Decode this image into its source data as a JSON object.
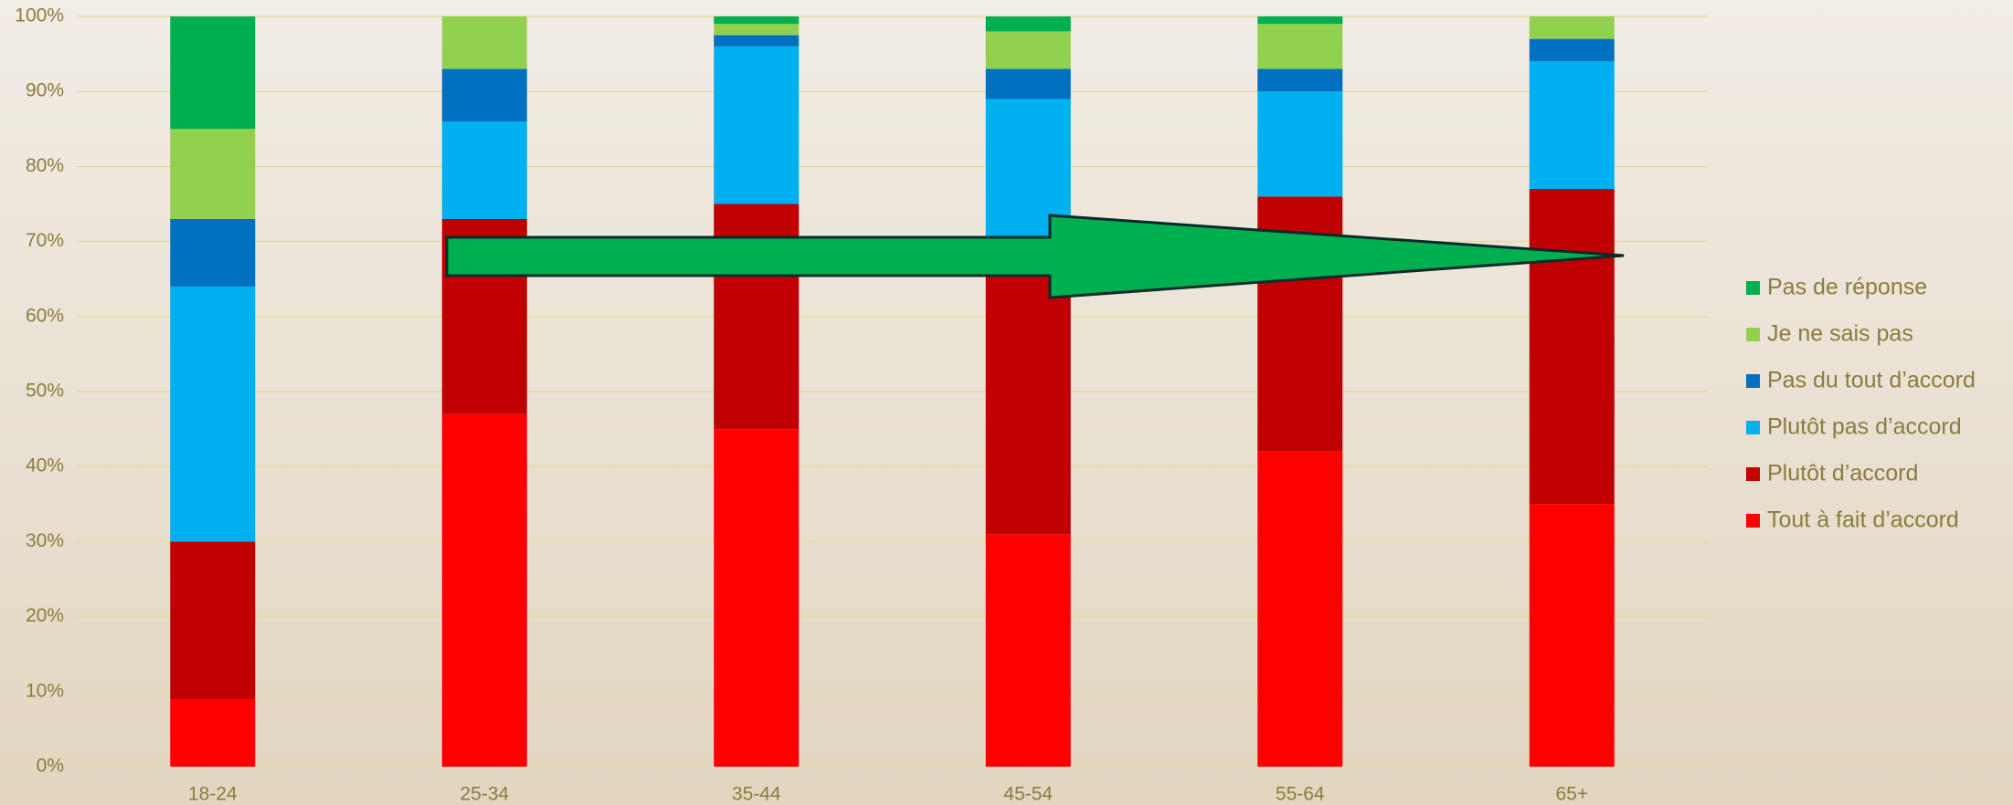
{
  "chart_data": {
    "type": "stacked_bar",
    "categories": [
      "18-24",
      "25-34",
      "35-44",
      "45-54",
      "55-64",
      "65+"
    ],
    "series": [
      {
        "name": "Tout à fait d’accord",
        "color": "#ff0000",
        "values": [
          9,
          47,
          45,
          31,
          42,
          35
        ]
      },
      {
        "name": "Plutôt d’accord",
        "color": "#c00000",
        "values": [
          21,
          26,
          30,
          39,
          34,
          42
        ]
      },
      {
        "name": "Plutôt pas d’accord",
        "color": "#00b0f0",
        "values": [
          34,
          13,
          21,
          19,
          14,
          17
        ]
      },
      {
        "name": "Pas du tout d’accord",
        "color": "#0070c0",
        "values": [
          9,
          7,
          1.5,
          4,
          3,
          3
        ]
      },
      {
        "name": "Je ne sais pas",
        "color": "#92d050",
        "values": [
          12,
          7,
          1.5,
          5,
          6,
          3
        ]
      },
      {
        "name": "Pas de réponse",
        "color": "#00b050",
        "values": [
          15,
          0,
          1,
          2,
          1,
          0
        ]
      }
    ],
    "ylim": [
      0,
      100
    ],
    "yticks": [
      {
        "value": 0,
        "label": "0%"
      },
      {
        "value": 10,
        "label": "10%"
      },
      {
        "value": 20,
        "label": "20%"
      },
      {
        "value": 30,
        "label": "30%"
      },
      {
        "value": 40,
        "label": "40%"
      },
      {
        "value": 50,
        "label": "50%"
      },
      {
        "value": 60,
        "label": "60%"
      },
      {
        "value": 70,
        "label": "70%"
      },
      {
        "value": 80,
        "label": "80%"
      },
      {
        "value": 90,
        "label": "90%"
      },
      {
        "value": 100,
        "label": "100%"
      }
    ],
    "grid": true,
    "legend": "right"
  }
}
